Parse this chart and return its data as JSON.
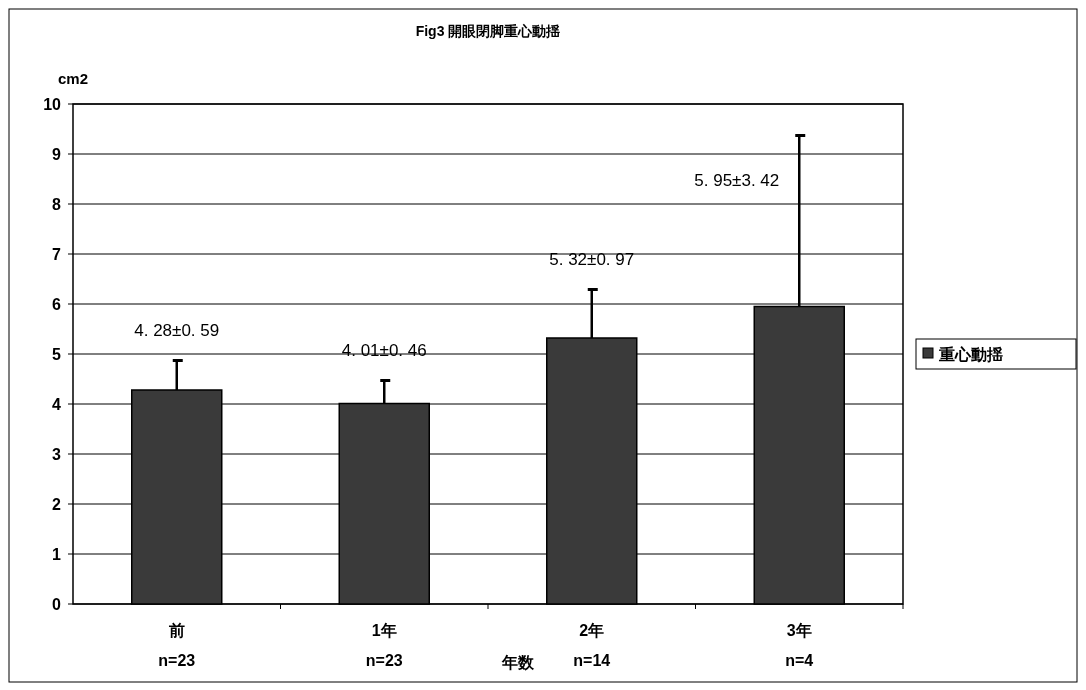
{
  "chart_data": {
    "type": "bar",
    "title": "Fig3 開眼閉脚重心動揺",
    "ylabel": "cm2",
    "xlabel": "年数",
    "categories": [
      "前\nn=23",
      "1年\nn=23",
      "2年\nn=14",
      "3年\nn=4"
    ],
    "series": [
      {
        "name": "重心動揺",
        "color": "#3a3a3a",
        "values": [
          4.28,
          4.01,
          5.32,
          5.95
        ],
        "errors": [
          [
            4.28,
            4.87
          ],
          [
            4.01,
            4.47
          ],
          [
            5.32,
            6.29
          ],
          [
            5.95,
            9.37
          ]
        ]
      }
    ],
    "annotations": [
      {
        "text": "4. 28±0. 59",
        "x": "前\nn=23",
        "y": 4.87
      },
      {
        "text": "4. 01±0. 46",
        "x": "1年\nn=23",
        "y": 4.47
      },
      {
        "text": "5. 32±0. 97",
        "x": "2年\nn=14",
        "y": 6.29
      },
      {
        "text": "5. 95±3. 42",
        "x": "3年\nn=4",
        "y": 9.37
      }
    ],
    "ylim": [
      0,
      10
    ],
    "yticks": [
      0,
      1,
      2,
      3,
      4,
      5,
      6,
      7,
      8,
      9,
      10
    ],
    "grid": "y",
    "legend": "right"
  }
}
